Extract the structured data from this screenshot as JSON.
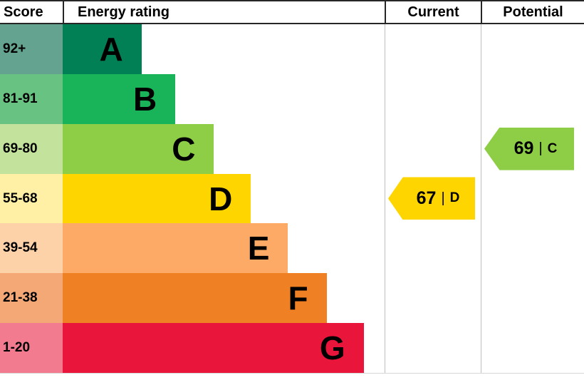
{
  "header": {
    "score": "Score",
    "energy_rating": "Energy rating",
    "current": "Current",
    "potential": "Potential"
  },
  "bands": [
    {
      "letter": "A",
      "score": "92+",
      "color": "#008054",
      "tint": "#64a38f",
      "width_pct": 24.5
    },
    {
      "letter": "B",
      "score": "81-91",
      "color": "#19b459",
      "tint": "#68c382",
      "width_pct": 35
    },
    {
      "letter": "C",
      "score": "69-80",
      "color": "#8dce46",
      "tint": "#c3e39c",
      "width_pct": 47
    },
    {
      "letter": "D",
      "score": "55-68",
      "color": "#ffd500",
      "tint": "#fff0a6",
      "width_pct": 58.5
    },
    {
      "letter": "E",
      "score": "39-54",
      "color": "#fcaa65",
      "tint": "#fdd2a8",
      "width_pct": 70
    },
    {
      "letter": "F",
      "score": "21-38",
      "color": "#ef8023",
      "tint": "#f4a876",
      "width_pct": 82
    },
    {
      "letter": "G",
      "score": "1-20",
      "color": "#e9153b",
      "tint": "#f27b90",
      "width_pct": 93.5
    }
  ],
  "current": {
    "label_value": "67",
    "separator": "|",
    "letter": "D",
    "color": "#ffd500",
    "band_index": 3
  },
  "potential": {
    "label_value": "69",
    "separator": "|",
    "letter": "C",
    "color": "#8dce46",
    "band_index": 2
  },
  "chart_data": {
    "type": "bar",
    "title": "Energy rating",
    "categories": [
      "A",
      "B",
      "C",
      "D",
      "E",
      "F",
      "G"
    ],
    "score_ranges": [
      "92+",
      "81-91",
      "69-80",
      "55-68",
      "39-54",
      "21-38",
      "1-20"
    ],
    "values": [
      24.5,
      35,
      47,
      58.5,
      70,
      82,
      93.5
    ],
    "markers": {
      "current": {
        "score": 67,
        "band": "D"
      },
      "potential": {
        "score": 69,
        "band": "C"
      }
    },
    "xlabel": "",
    "ylabel": "Score",
    "grid": false,
    "legend_position": "none"
  }
}
